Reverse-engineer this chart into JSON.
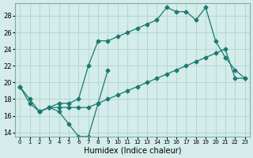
{
  "xlabel": "Humidex (Indice chaleur)",
  "background_color": "#d4ecea",
  "grid_color": "#b0d4d0",
  "line_color": "#1a7a70",
  "xlim": [
    -0.5,
    23.5
  ],
  "ylim": [
    13.5,
    29.5
  ],
  "yticks": [
    14,
    16,
    18,
    20,
    22,
    24,
    26,
    28
  ],
  "xticks": [
    0,
    1,
    2,
    3,
    4,
    5,
    6,
    7,
    8,
    9,
    10,
    11,
    12,
    13,
    14,
    15,
    16,
    17,
    18,
    19,
    20,
    21,
    22,
    23
  ],
  "line1_x": [
    0,
    1,
    2,
    3,
    4,
    5,
    6,
    7,
    8,
    9
  ],
  "line1_y": [
    19.5,
    18.0,
    16.5,
    17.0,
    16.5,
    15.0,
    13.5,
    13.5,
    17.5,
    21.5
  ],
  "line2_x": [
    2,
    3,
    4,
    5,
    6,
    7,
    8,
    9,
    10,
    11,
    12,
    13,
    14,
    15,
    16,
    17,
    18,
    19,
    20,
    21,
    22,
    23
  ],
  "line2_y": [
    16.5,
    17.0,
    17.5,
    17.5,
    18.0,
    22.0,
    25.0,
    25.0,
    25.5,
    26.0,
    26.5,
    27.0,
    27.5,
    29.0,
    28.5,
    28.5,
    27.5,
    29.0,
    25.0,
    23.0,
    21.5,
    20.5
  ],
  "line3_x": [
    0,
    1,
    2,
    3,
    4,
    5,
    6,
    7,
    8,
    9,
    10,
    11,
    12,
    13,
    14,
    15,
    16,
    17,
    18,
    19,
    20,
    21,
    22,
    23
  ],
  "line3_y": [
    19.5,
    17.5,
    16.5,
    17.0,
    17.0,
    17.0,
    17.0,
    17.0,
    17.5,
    18.0,
    18.5,
    19.0,
    19.5,
    20.0,
    20.5,
    21.0,
    21.5,
    22.0,
    22.5,
    23.0,
    23.5,
    24.0,
    20.5,
    20.5
  ]
}
